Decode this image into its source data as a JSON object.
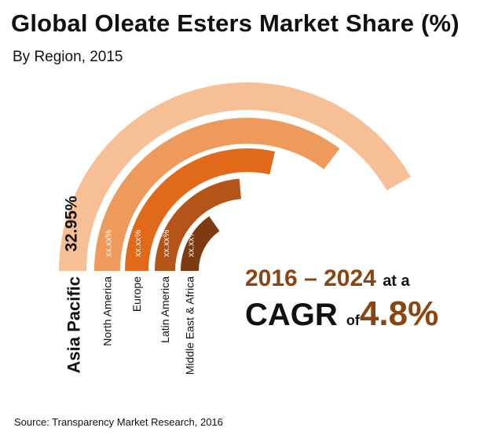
{
  "title": "Global Oleate Esters Market Share (%)",
  "subtitle": "By Region, 2015",
  "source": "Source: Transparency Market Research, 2016",
  "cagr": {
    "years": "2016 – 2024",
    "at_a": "at a",
    "cagr_label": "CAGR",
    "of": "of",
    "rate": "4.8%"
  },
  "chart_data": {
    "type": "radial bar",
    "title": "Global Oleate Esters Market Share (%)",
    "subtitle": "By Region, 2015",
    "categories": [
      "Asia Pacific",
      "North America",
      "Europe",
      "Latin America",
      "Middle East & Africa"
    ],
    "labels": [
      "32.95%",
      "xx.xx%",
      "xx.xx%",
      "xx.xx%",
      "xx.xx%"
    ],
    "values": [
      32.95,
      null,
      null,
      null,
      null
    ],
    "colors": [
      "#f6bf96",
      "#ef9a5d",
      "#e06a1a",
      "#b55418",
      "#7e3a10"
    ],
    "sweep_degrees": [
      150,
      127,
      103,
      85,
      55
    ]
  }
}
